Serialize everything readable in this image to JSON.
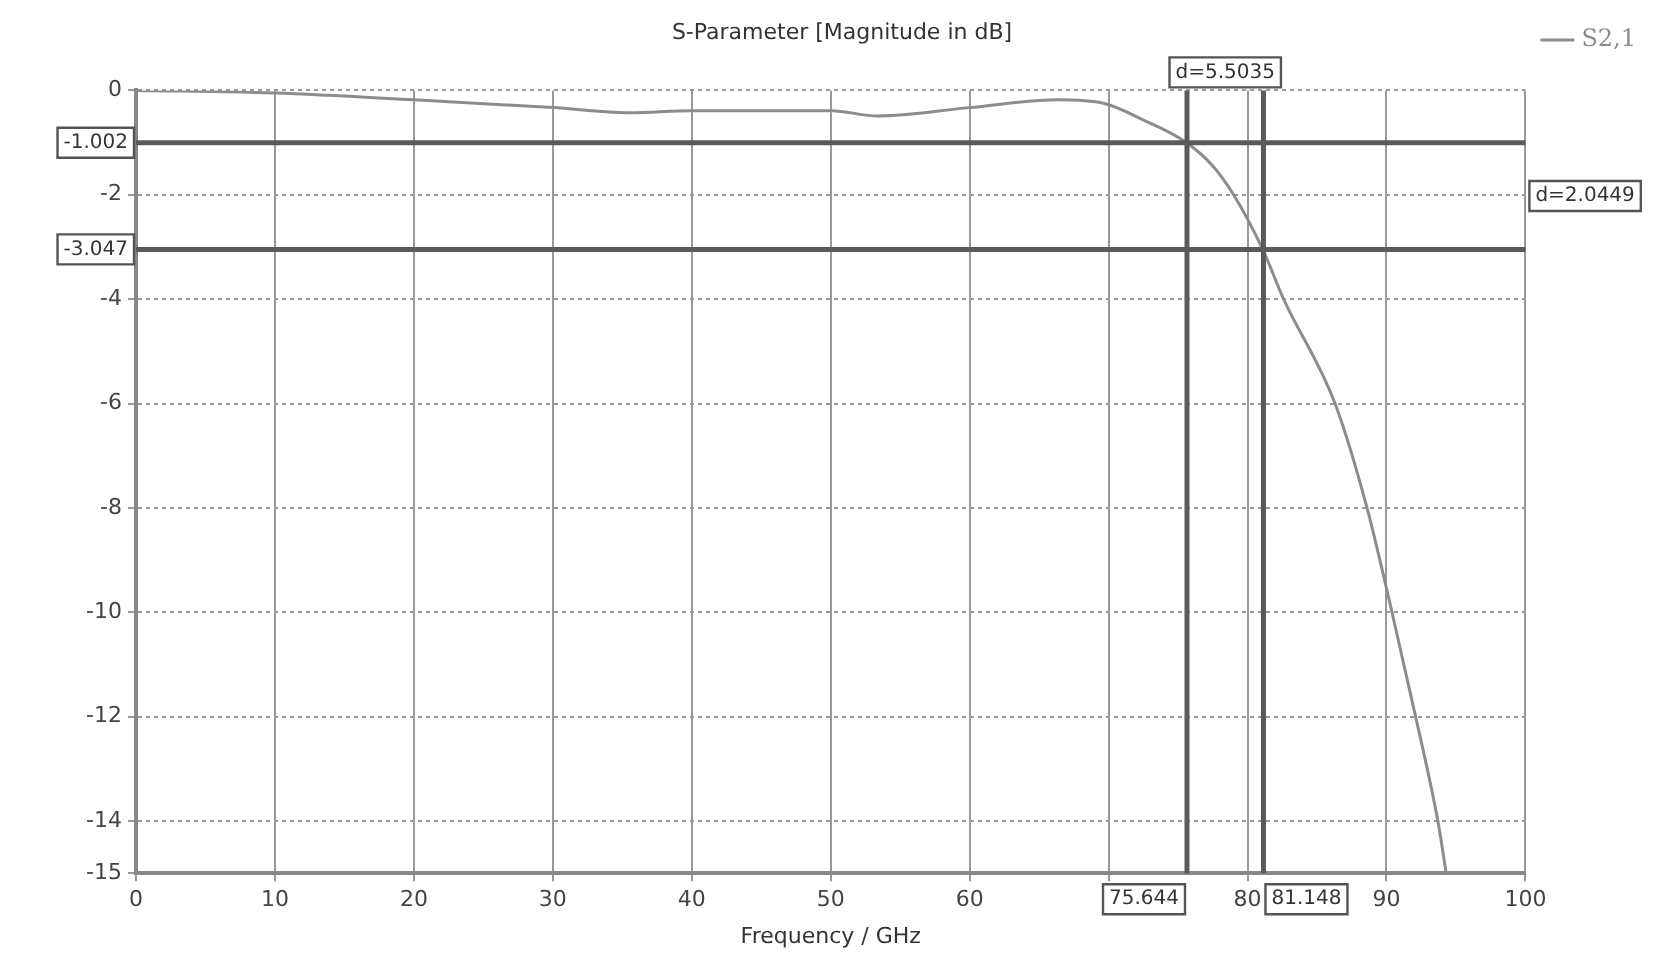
{
  "chart_data": {
    "type": "line",
    "title": "S-Parameter [Magnitude in dB]",
    "xlabel": "Frequency / GHz",
    "xlim": [
      0,
      100
    ],
    "xticks": [
      0,
      10,
      20,
      30,
      40,
      50,
      60,
      {
        "value": 70,
        "label": null
      },
      80,
      90,
      100
    ],
    "ylim": [
      -15,
      0
    ],
    "yticks": [
      0,
      -2,
      -4,
      -6,
      -8,
      -10,
      -12,
      -14,
      -15
    ],
    "grid": true,
    "legend": "top right",
    "marker": "none",
    "line_style": "solid",
    "series": [
      {
        "name": "S2,1",
        "color": "#8c8c8c",
        "x": [
          0,
          10,
          20,
          30,
          35.5,
          40,
          50,
          53.4,
          60,
          66.3,
          69.7,
          72.6,
          75.6,
          77.5,
          79,
          81.1,
          82.6,
          86.3,
          88.6,
          90.4,
          92.1,
          93.7,
          94.3
        ],
        "values": [
          0,
          -0.05,
          -0.18,
          -0.33,
          -0.43,
          -0.39,
          -0.39,
          -0.49,
          -0.33,
          -0.18,
          -0.25,
          -0.58,
          -1.0,
          -1.45,
          -2,
          -3.05,
          -4,
          -6,
          -8,
          -10,
          -12,
          -14,
          -15
        ]
      }
    ],
    "ref_lines": [
      {
        "axis": "y",
        "value": -1.002,
        "label": "-1.002",
        "color": "#5a5a5a"
      },
      {
        "axis": "y",
        "value": -3.047,
        "label": "-3.047",
        "color": "#5a5a5a"
      },
      {
        "axis": "x",
        "value": 75.644,
        "label": "75.644",
        "color": "#5a5a5a"
      },
      {
        "axis": "x",
        "value": 81.148,
        "label": "81.148",
        "color": "#5a5a5a"
      }
    ],
    "annotations": [
      "d=5.5035",
      "d=2.0449"
    ]
  }
}
